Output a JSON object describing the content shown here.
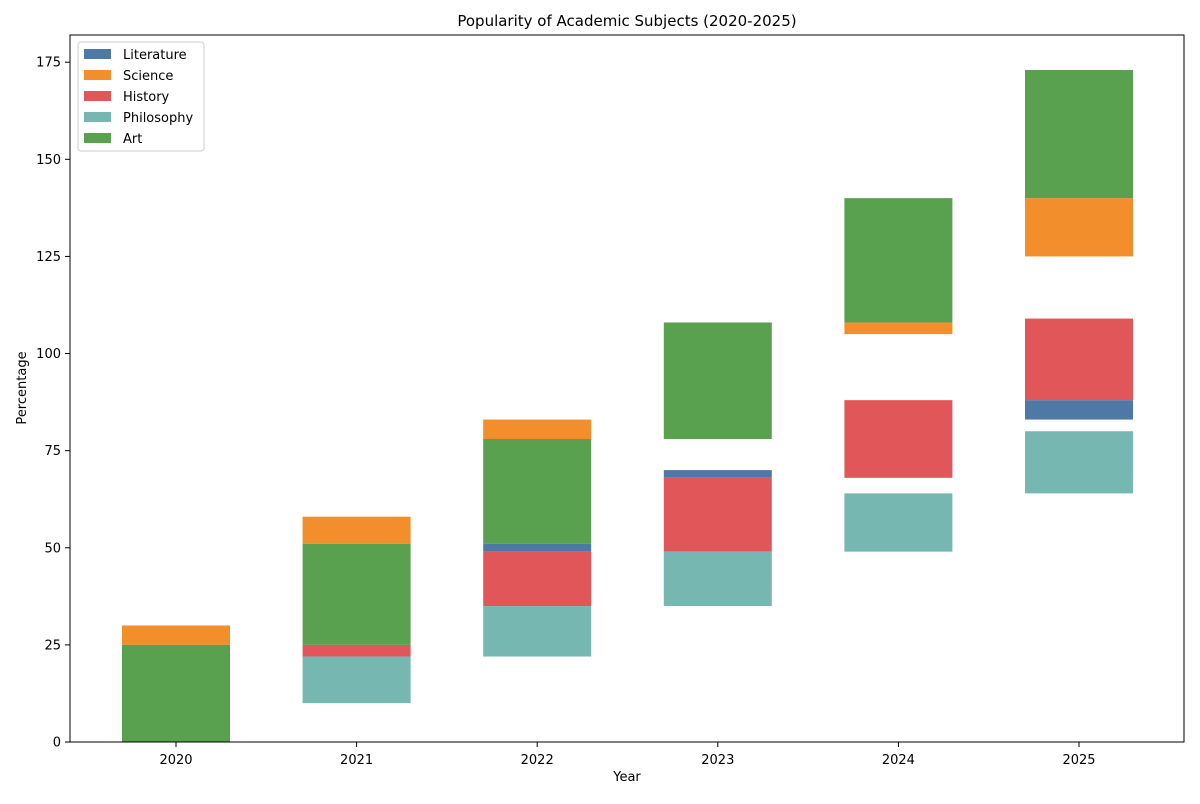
{
  "chart_data": {
    "type": "bar",
    "title": "Popularity of Academic Subjects (2020-2025)",
    "xlabel": "Year",
    "ylabel": "Percentage",
    "categories": [
      "2020",
      "2021",
      "2022",
      "2023",
      "2024",
      "2025"
    ],
    "ylim": [
      0,
      182
    ],
    "yticks": [
      0,
      25,
      50,
      75,
      100,
      125,
      150,
      175
    ],
    "grid": false,
    "legend_position": "top-left",
    "series": [
      {
        "name": "Literature",
        "color": "#4e79a7",
        "ranges": [
          null,
          null,
          [
            49,
            51
          ],
          [
            68,
            70
          ],
          null,
          [
            83,
            88
          ]
        ]
      },
      {
        "name": "Science",
        "color": "#f28e2b",
        "ranges": [
          [
            25,
            30
          ],
          [
            51,
            58
          ],
          [
            78,
            83
          ],
          null,
          [
            105,
            108
          ],
          [
            125,
            140
          ]
        ]
      },
      {
        "name": "History",
        "color": "#e15759",
        "ranges": [
          null,
          [
            22,
            25
          ],
          [
            35,
            49
          ],
          [
            49,
            68
          ],
          [
            68,
            88
          ],
          [
            88,
            109
          ]
        ]
      },
      {
        "name": "Philosophy",
        "color": "#76b7b2",
        "ranges": [
          null,
          [
            10,
            22
          ],
          [
            22,
            35
          ],
          [
            35,
            49
          ],
          [
            49,
            64
          ],
          [
            64,
            80
          ]
        ]
      },
      {
        "name": "Art",
        "color": "#59a14f",
        "ranges": [
          [
            0,
            25
          ],
          [
            25,
            51
          ],
          [
            51,
            78
          ],
          [
            78,
            108
          ],
          [
            108,
            140
          ],
          [
            140,
            173
          ]
        ]
      }
    ]
  }
}
